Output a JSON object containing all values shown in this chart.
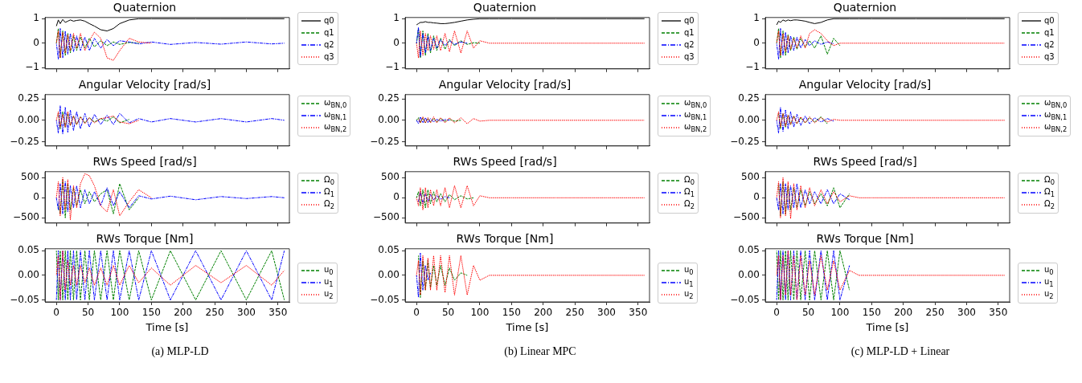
{
  "chart_data": [
    {
      "type": "line",
      "title": "Quaternion",
      "x": [
        0,
        3,
        6,
        10,
        14,
        18,
        22,
        27,
        32,
        38,
        45,
        52,
        60,
        70,
        80,
        90,
        100,
        115,
        130,
        150,
        180,
        220,
        260,
        300,
        340,
        360
      ],
      "xlim": [
        -18,
        368
      ],
      "xticks": [
        0,
        50,
        100,
        150,
        200,
        250,
        300,
        350
      ],
      "ylim": [
        -1.05,
        1.05
      ],
      "yticks": [
        {
          "value": -1,
          "label": "−1"
        },
        0,
        1
      ],
      "legend": "right",
      "tick_labels": "y",
      "series": [
        {
          "name": "q0",
          "color": "#000000",
          "line_style": "solid",
          "values": [
            0.7,
            0.95,
            0.8,
            0.97,
            0.85,
            0.9,
            0.95,
            0.9,
            0.93,
            0.95,
            0.9,
            0.8,
            0.7,
            0.55,
            0.5,
            0.6,
            0.8,
            0.95,
            1,
            1,
            1,
            1,
            1,
            1,
            1,
            1
          ]
        },
        {
          "name": "q1",
          "color": "#008000",
          "line_style": "dashed",
          "values": [
            0,
            0.6,
            -0.6,
            0.5,
            -0.5,
            0.4,
            -0.4,
            0.3,
            -0.3,
            0.25,
            -0.2,
            0.2,
            -0.15,
            0.1,
            -0.1,
            0.05,
            -0.05,
            0.03,
            0,
            null,
            null,
            null,
            null,
            null,
            null,
            null
          ]
        },
        {
          "name": "q2",
          "color": "#0000ff",
          "line_style": "dashdot",
          "values": [
            0,
            -0.65,
            0.6,
            -0.6,
            0.5,
            -0.45,
            0.4,
            -0.35,
            0.3,
            -0.3,
            0.25,
            -0.3,
            0.2,
            -0.2,
            0.15,
            -0.1,
            0.1,
            0.05,
            -0.03,
            0.05,
            -0.05,
            0.03,
            -0.04,
            0.05,
            -0.03,
            0
          ]
        },
        {
          "name": "q3",
          "color": "#ff0000",
          "line_style": "dotted",
          "values": [
            0,
            0.5,
            -0.6,
            0.45,
            -0.4,
            0.35,
            -0.3,
            0.4,
            -0.2,
            0.4,
            -0.3,
            0.1,
            0.45,
            0.2,
            -0.6,
            -0.7,
            -0.3,
            0.2,
            0.05,
            0,
            null,
            null,
            null,
            null,
            null,
            null
          ]
        }
      ]
    },
    {
      "type": "line",
      "title": "Angular Velocity [rad/s]",
      "x": [
        0,
        3,
        6,
        10,
        14,
        18,
        22,
        27,
        32,
        38,
        45,
        52,
        60,
        70,
        80,
        90,
        100,
        115,
        130,
        150,
        180,
        220,
        260,
        300,
        340,
        360
      ],
      "xlim": [
        -18,
        368
      ],
      "xticks": [
        0,
        50,
        100,
        150,
        200,
        250,
        300,
        350
      ],
      "ylim": [
        -0.3,
        0.3
      ],
      "yticks": [
        {
          "value": -0.25,
          "label": "−0.25"
        },
        {
          "value": 0,
          "label": "0.00"
        },
        0.25
      ],
      "legend": "right",
      "tick_labels": "y",
      "series": [
        {
          "name": "ω$_{BN,0}$",
          "color": "#008000",
          "line_style": "dashed",
          "values": [
            null,
            0.08,
            -0.1,
            0.1,
            -0.08,
            0.08,
            -0.06,
            0.05,
            -0.05,
            0.04,
            -0.03,
            0.03,
            -0.02,
            0.02,
            -0.01,
            0.04,
            -0.03,
            0.01,
            null,
            null,
            null,
            null,
            null,
            null,
            null,
            null
          ]
        },
        {
          "name": "ω$_{BN,1}$",
          "color": "#0000ff",
          "line_style": "dashdot",
          "values": [
            0,
            -0.15,
            0.17,
            -0.16,
            0.15,
            -0.14,
            0.12,
            -0.12,
            0.1,
            -0.1,
            0.08,
            -0.08,
            0.07,
            -0.05,
            0.06,
            -0.05,
            0.08,
            -0.03,
            0.02,
            -0.02,
            0.02,
            -0.02,
            0.02,
            -0.02,
            0.02,
            0
          ]
        },
        {
          "name": "ω$_{BN,2}$",
          "color": "#ff0000",
          "line_style": "dotted",
          "values": [
            0,
            0.1,
            -0.08,
            0.07,
            -0.08,
            0.1,
            -0.06,
            0.05,
            -0.05,
            0.04,
            -0.04,
            0.03,
            -0.03,
            0.02,
            0.03,
            0.05,
            -0.02,
            -0.04,
            0,
            null,
            null,
            null,
            null,
            null,
            null,
            null
          ]
        }
      ]
    },
    {
      "type": "line",
      "title": "RWs Speed [rad/s]",
      "x": [
        0,
        3,
        6,
        10,
        14,
        18,
        22,
        27,
        32,
        38,
        45,
        52,
        60,
        70,
        80,
        90,
        100,
        115,
        130,
        150,
        180,
        220,
        260,
        300,
        340,
        360
      ],
      "xlim": [
        -18,
        368
      ],
      "xticks": [
        0,
        50,
        100,
        150,
        200,
        250,
        300,
        350
      ],
      "ylim": [
        -630,
        650
      ],
      "yticks": [
        {
          "value": -500,
          "label": "−500"
        },
        0,
        500
      ],
      "legend": "right",
      "tick_labels": "y",
      "series": [
        {
          "name": "Ω$_{0}$",
          "color": "#008000",
          "line_style": "dashed",
          "values": [
            null,
            -150,
            -400,
            450,
            -500,
            350,
            -300,
            250,
            -200,
            200,
            -150,
            150,
            -100,
            100,
            200,
            -400,
            350,
            -300,
            0,
            null,
            null,
            null,
            null,
            null,
            null,
            null
          ]
        },
        {
          "name": "Ω$_{1}$",
          "color": "#0000ff",
          "line_style": "dashdot",
          "values": [
            0,
            -300,
            350,
            -400,
            400,
            -350,
            300,
            -250,
            300,
            -250,
            200,
            -150,
            150,
            -200,
            250,
            -200,
            150,
            -250,
            50,
            -30,
            40,
            -50,
            30,
            -20,
            30,
            0
          ]
        },
        {
          "name": "Ω$_{2}$",
          "color": "#ff0000",
          "line_style": "dotted",
          "values": [
            0,
            400,
            -450,
            500,
            -300,
            450,
            -550,
            300,
            -250,
            350,
            600,
            550,
            300,
            -200,
            -350,
            200,
            -450,
            -100,
            200,
            0,
            null,
            null,
            null,
            null,
            null,
            null
          ]
        }
      ]
    },
    {
      "type": "line",
      "title": "RWs Torque [Nm]",
      "xlabel": "Time [s]",
      "annotations": [
        "(a) MLP-LD"
      ],
      "x": [
        0,
        3,
        6,
        10,
        14,
        18,
        22,
        27,
        32,
        38,
        45,
        52,
        60,
        70,
        80,
        90,
        100,
        115,
        130,
        150,
        180,
        220,
        260,
        300,
        340,
        360
      ],
      "xlim": [
        -18,
        368
      ],
      "xticks": [
        0,
        50,
        100,
        150,
        200,
        250,
        300,
        350
      ],
      "ylim": [
        -0.054,
        0.054
      ],
      "yticks": [
        {
          "value": -0.05,
          "label": "−0.05"
        },
        {
          "value": 0,
          "label": "0.00"
        },
        0.05
      ],
      "legend": "right",
      "series": [
        {
          "name": "u$_{0}$",
          "color": "#008000",
          "line_style": "dashed",
          "values": [
            0.05,
            -0.05,
            0.05,
            -0.05,
            0.05,
            -0.05,
            0.05,
            -0.05,
            0.05,
            -0.05,
            0.05,
            -0.05,
            0.05,
            -0.05,
            0.05,
            -0.05,
            0.05,
            -0.05,
            0.05,
            -0.05,
            0.05,
            -0.05,
            0.05,
            -0.05,
            0.05,
            -0.05
          ]
        },
        {
          "name": "u$_{1}$",
          "color": "#0000ff",
          "line_style": "dashdot",
          "values": [
            -0.05,
            0.05,
            -0.05,
            0.05,
            -0.05,
            0.05,
            -0.05,
            0.05,
            -0.05,
            0.05,
            -0.05,
            0.05,
            -0.05,
            0.05,
            -0.05,
            0.05,
            -0.05,
            0.05,
            -0.05,
            0.05,
            -0.05,
            0.05,
            -0.05,
            0.05,
            -0.05,
            0.05
          ]
        },
        {
          "name": "u$_{2}$",
          "color": "#ff0000",
          "line_style": "dotted",
          "values": [
            0,
            0.04,
            -0.05,
            0.05,
            -0.03,
            0.03,
            -0.02,
            0.02,
            -0.02,
            0.02,
            -0.015,
            0.015,
            -0.02,
            0.015,
            -0.02,
            0.02,
            -0.02,
            0.02,
            -0.015,
            0.015,
            -0.02,
            0.02,
            -0.015,
            0.02,
            -0.02,
            0.01
          ]
        }
      ]
    },
    {
      "type": "line",
      "title": "Quaternion",
      "x": [
        0,
        3,
        6,
        10,
        14,
        18,
        22,
        27,
        32,
        38,
        45,
        52,
        60,
        70,
        80,
        90,
        100,
        115,
        130,
        150,
        180,
        220,
        260,
        300,
        340,
        360
      ],
      "xlim": [
        -18,
        368
      ],
      "xticks": [
        0,
        50,
        100,
        150,
        200,
        250,
        300,
        350
      ],
      "ylim": [
        -1.05,
        1.05
      ],
      "yticks": [
        {
          "value": -1,
          "label": "−1"
        },
        0,
        1
      ],
      "legend": "right",
      "tick_labels": "y",
      "series": [
        {
          "name": "q0",
          "color": "#000000",
          "line_style": "solid",
          "values": [
            0.75,
            0.8,
            0.85,
            0.85,
            0.88,
            0.85,
            0.85,
            0.83,
            0.82,
            0.8,
            0.8,
            0.82,
            0.85,
            0.9,
            0.95,
            0.98,
            1,
            1,
            1,
            1,
            1,
            1,
            1,
            1,
            1,
            1
          ]
        },
        {
          "name": "q1",
          "color": "#008000",
          "line_style": "dashed",
          "values": [
            0,
            0.6,
            -0.6,
            0.5,
            -0.5,
            0.4,
            -0.4,
            0.3,
            -0.3,
            0.2,
            -0.25,
            0.15,
            -0.1,
            0.1,
            -0.05,
            0.02,
            0,
            null,
            null,
            null,
            null,
            null,
            null,
            null,
            null,
            null
          ]
        },
        {
          "name": "q2",
          "color": "#0000ff",
          "line_style": "dashdot",
          "values": [
            0,
            0.65,
            -0.55,
            0.4,
            -0.4,
            0.3,
            -0.3,
            0.2,
            -0.2,
            0.15,
            -0.1,
            0.1,
            -0.05,
            0.05,
            0,
            null,
            null,
            null,
            null,
            null,
            null,
            null,
            null,
            null,
            null,
            null
          ]
        },
        {
          "name": "q3",
          "color": "#ff0000",
          "line_style": "dotted",
          "values": [
            0,
            -0.6,
            0.5,
            -0.5,
            0.4,
            -0.3,
            0.3,
            -0.25,
            0.3,
            -0.3,
            0.4,
            -0.35,
            0.5,
            -0.4,
            0.5,
            -0.2,
            0.1,
            0,
            0,
            0,
            0,
            0,
            0,
            0,
            0,
            0
          ]
        }
      ]
    },
    {
      "type": "line",
      "title": "Angular Velocity [rad/s]",
      "x": [
        0,
        3,
        6,
        10,
        14,
        18,
        22,
        27,
        32,
        38,
        45,
        52,
        60,
        70,
        80,
        90,
        100,
        115,
        130,
        150,
        180,
        220,
        260,
        300,
        340,
        360
      ],
      "xlim": [
        -18,
        368
      ],
      "xticks": [
        0,
        50,
        100,
        150,
        200,
        250,
        300,
        350
      ],
      "ylim": [
        -0.3,
        0.3
      ],
      "yticks": [
        {
          "value": -0.25,
          "label": "−0.25"
        },
        {
          "value": 0,
          "label": "0.00"
        },
        0.25
      ],
      "legend": "right",
      "tick_labels": "y",
      "series": [
        {
          "name": "ω$_{BN,0}$",
          "color": "#008000",
          "line_style": "dashed",
          "values": [
            0,
            0.03,
            -0.03,
            0.03,
            -0.03,
            0.02,
            -0.02,
            0.02,
            -0.02,
            0.02,
            -0.01,
            0.01,
            -0.01,
            0,
            null,
            null,
            null,
            null,
            null,
            null,
            null,
            null,
            null,
            null,
            null,
            null
          ]
        },
        {
          "name": "ω$_{BN,1}$",
          "color": "#0000ff",
          "line_style": "dashdot",
          "values": [
            0,
            -0.04,
            0.04,
            -0.03,
            0.03,
            -0.03,
            0.02,
            -0.02,
            0.01,
            -0.01,
            0.01,
            0,
            null,
            null,
            null,
            null,
            null,
            null,
            null,
            null,
            null,
            null,
            null,
            null,
            null,
            null
          ]
        },
        {
          "name": "ω$_{BN,2}$",
          "color": "#ff0000",
          "line_style": "dotted",
          "values": [
            null,
            0.02,
            -0.03,
            0.04,
            -0.03,
            0.03,
            -0.03,
            0.04,
            -0.03,
            0.03,
            -0.03,
            0.03,
            -0.03,
            0.03,
            -0.04,
            0.02,
            -0.01,
            0,
            0,
            0,
            0,
            0,
            0,
            0,
            0,
            0
          ]
        }
      ]
    },
    {
      "type": "line",
      "title": "RWs Speed [rad/s]",
      "x": [
        0,
        3,
        6,
        10,
        14,
        18,
        22,
        27,
        32,
        38,
        45,
        52,
        60,
        70,
        80,
        90,
        100,
        115,
        130,
        150,
        180,
        220,
        260,
        300,
        340,
        360
      ],
      "xlim": [
        -18,
        368
      ],
      "xticks": [
        0,
        50,
        100,
        150,
        200,
        250,
        300,
        350
      ],
      "ylim": [
        -630,
        650
      ],
      "yticks": [
        {
          "value": -500,
          "label": "−500"
        },
        0,
        500
      ],
      "legend": "right",
      "tick_labels": "y",
      "series": [
        {
          "name": "Ω$_{0}$",
          "color": "#008000",
          "line_style": "dashed",
          "values": [
            0,
            150,
            -200,
            200,
            -250,
            200,
            -150,
            150,
            -100,
            100,
            -100,
            80,
            -50,
            50,
            -30,
            0,
            null,
            null,
            null,
            null,
            null,
            null,
            null,
            null,
            null,
            null
          ]
        },
        {
          "name": "Ω$_{1}$",
          "color": "#0000ff",
          "line_style": "dashdot",
          "values": [
            null,
            -100,
            150,
            -150,
            100,
            -100,
            80,
            -50,
            50,
            -40,
            30,
            0,
            null,
            null,
            null,
            null,
            null,
            null,
            null,
            null,
            null,
            null,
            null,
            null,
            null,
            null
          ]
        },
        {
          "name": "Ω$_{2}$",
          "color": "#ff0000",
          "line_style": "dotted",
          "values": [
            0,
            -200,
            250,
            -300,
            250,
            -250,
            200,
            -200,
            200,
            -200,
            250,
            -250,
            300,
            -250,
            300,
            -200,
            50,
            0,
            0,
            0,
            0,
            0,
            0,
            0,
            0,
            0
          ]
        }
      ]
    },
    {
      "type": "line",
      "title": "RWs Torque [Nm]",
      "xlabel": "Time [s]",
      "annotations": [
        "(b) Linear MPC"
      ],
      "x": [
        0,
        3,
        6,
        10,
        14,
        18,
        22,
        27,
        32,
        38,
        45,
        52,
        60,
        70,
        80,
        90,
        100,
        115,
        130,
        150,
        180,
        220,
        260,
        300,
        340,
        360
      ],
      "xlim": [
        -18,
        368
      ],
      "xticks": [
        0,
        50,
        100,
        150,
        200,
        250,
        300,
        350
      ],
      "ylim": [
        -0.054,
        0.054
      ],
      "yticks": [
        {
          "value": -0.05,
          "label": "−0.05"
        },
        {
          "value": 0,
          "label": "0.00"
        },
        0.05
      ],
      "legend": "right",
      "series": [
        {
          "name": "u$_{0}$",
          "color": "#008000",
          "line_style": "dashed",
          "values": [
            null,
            0.04,
            -0.045,
            0.03,
            -0.03,
            0.03,
            -0.025,
            0.02,
            -0.02,
            0.02,
            -0.02,
            0.015,
            -0.01,
            0.005,
            0,
            null,
            null,
            null,
            null,
            null,
            null,
            null,
            null,
            null,
            null,
            null
          ]
        },
        {
          "name": "u$_{1}$",
          "color": "#0000ff",
          "line_style": "dashdot",
          "values": [
            0,
            -0.045,
            0.045,
            -0.03,
            0.02,
            -0.01,
            0.005,
            null,
            null,
            null,
            null,
            null,
            null,
            null,
            null,
            null,
            null,
            null,
            null,
            null,
            null,
            null,
            null,
            null,
            null,
            null
          ]
        },
        {
          "name": "u$_{2}$",
          "color": "#ff0000",
          "line_style": "dotted",
          "values": [
            0,
            0.03,
            -0.04,
            0.04,
            -0.03,
            0.035,
            -0.03,
            0.04,
            -0.03,
            0.04,
            -0.035,
            0.04,
            -0.04,
            0.04,
            -0.04,
            0.02,
            -0.01,
            0,
            0,
            0,
            0,
            0,
            0,
            0,
            0,
            0
          ]
        }
      ]
    },
    {
      "type": "line",
      "title": "Quaternion",
      "x": [
        0,
        3,
        6,
        10,
        14,
        18,
        22,
        27,
        32,
        38,
        45,
        52,
        60,
        70,
        80,
        90,
        100,
        115,
        130,
        150,
        180,
        220,
        260,
        300,
        340,
        360
      ],
      "xlim": [
        -18,
        368
      ],
      "xticks": [
        0,
        50,
        100,
        150,
        200,
        250,
        300,
        350
      ],
      "ylim": [
        -1.05,
        1.05
      ],
      "yticks": [
        {
          "value": -1,
          "label": "−1"
        },
        0,
        1
      ],
      "legend": "right",
      "tick_labels": "y",
      "series": [
        {
          "name": "q0",
          "color": "#000000",
          "line_style": "solid",
          "values": [
            0.75,
            0.9,
            0.85,
            0.95,
            0.9,
            0.95,
            0.92,
            0.95,
            0.95,
            0.93,
            0.9,
            0.85,
            0.8,
            0.85,
            0.95,
            1,
            1,
            1,
            1,
            1,
            1,
            1,
            1,
            1,
            1,
            1
          ]
        },
        {
          "name": "q1",
          "color": "#008000",
          "line_style": "dashed",
          "values": [
            0,
            0.6,
            -0.6,
            0.5,
            -0.5,
            0.35,
            -0.3,
            0.25,
            -0.25,
            0.2,
            -0.15,
            0.1,
            -0.2,
            0.3,
            -0.45,
            0.2,
            -0.1,
            null,
            null,
            null,
            null,
            null,
            null,
            null,
            null,
            null
          ]
        },
        {
          "name": "q2",
          "color": "#0000ff",
          "line_style": "dashdot",
          "values": [
            0,
            -0.65,
            0.6,
            -0.5,
            0.45,
            -0.4,
            0.3,
            -0.3,
            0.25,
            -0.2,
            0.15,
            -0.1,
            0.1,
            -0.05,
            0.05,
            -0.02,
            null,
            null,
            null,
            null,
            null,
            null,
            null,
            null,
            null,
            null
          ]
        },
        {
          "name": "q3",
          "color": "#ff0000",
          "line_style": "dotted",
          "values": [
            0,
            0.5,
            -0.5,
            0.4,
            -0.35,
            0.3,
            -0.25,
            0.2,
            -0.2,
            0.3,
            -0.2,
            0.4,
            0.55,
            0.4,
            0.1,
            -0.1,
            0,
            0,
            0,
            0,
            0,
            0,
            0,
            0,
            0,
            0
          ]
        }
      ]
    },
    {
      "type": "line",
      "title": "Angular Velocity [rad/s]",
      "x": [
        0,
        3,
        6,
        10,
        14,
        18,
        22,
        27,
        32,
        38,
        45,
        52,
        60,
        70,
        80,
        90,
        100,
        115,
        130,
        150,
        180,
        220,
        260,
        300,
        340,
        360
      ],
      "xlim": [
        -18,
        368
      ],
      "xticks": [
        0,
        50,
        100,
        150,
        200,
        250,
        300,
        350
      ],
      "ylim": [
        -0.3,
        0.3
      ],
      "yticks": [
        {
          "value": -0.25,
          "label": "−0.25"
        },
        {
          "value": 0,
          "label": "0.00"
        },
        0.25
      ],
      "legend": "right",
      "tick_labels": "y",
      "series": [
        {
          "name": "ω$_{BN,0}$",
          "color": "#008000",
          "line_style": "dashed",
          "values": [
            null,
            0.08,
            -0.1,
            0.08,
            -0.08,
            0.06,
            -0.05,
            0.05,
            -0.04,
            0.03,
            -0.03,
            0.03,
            -0.02,
            0.04,
            -0.04,
            null,
            null,
            null,
            null,
            null,
            null,
            null,
            null,
            null,
            null,
            null
          ]
        },
        {
          "name": "ω$_{BN,1}$",
          "color": "#0000ff",
          "line_style": "dashdot",
          "values": [
            0,
            -0.15,
            0.15,
            -0.13,
            0.12,
            -0.1,
            0.1,
            -0.08,
            0.07,
            -0.06,
            0.05,
            -0.04,
            0.03,
            -0.02,
            0.02,
            -0.01,
            null,
            null,
            null,
            null,
            null,
            null,
            null,
            null,
            null,
            null
          ]
        },
        {
          "name": "ω$_{BN,2}$",
          "color": "#ff0000",
          "line_style": "dotted",
          "values": [
            0,
            0.1,
            -0.08,
            0.08,
            -0.07,
            0.06,
            -0.05,
            0.05,
            -0.04,
            0.04,
            -0.03,
            0.04,
            -0.03,
            0.03,
            -0.02,
            0.01,
            0,
            0,
            0,
            0,
            0,
            0,
            0,
            0,
            0,
            0
          ]
        }
      ]
    },
    {
      "type": "line",
      "title": "RWs Speed [rad/s]",
      "x": [
        0,
        3,
        6,
        10,
        14,
        18,
        22,
        27,
        32,
        38,
        45,
        52,
        60,
        70,
        80,
        90,
        100,
        115,
        130,
        150,
        180,
        220,
        260,
        300,
        340,
        360
      ],
      "xlim": [
        -18,
        368
      ],
      "xticks": [
        0,
        50,
        100,
        150,
        200,
        250,
        300,
        350
      ],
      "ylim": [
        -630,
        650
      ],
      "yticks": [
        {
          "value": -500,
          "label": "−500"
        },
        0,
        500
      ],
      "legend": "right",
      "tick_labels": "y",
      "series": [
        {
          "name": "Ω$_{0}$",
          "color": "#008000",
          "line_style": "dashed",
          "values": [
            null,
            350,
            -450,
            400,
            -400,
            300,
            -300,
            250,
            -250,
            200,
            -200,
            150,
            -150,
            100,
            -200,
            250,
            -250,
            100,
            null,
            null,
            null,
            null,
            null,
            null,
            null,
            null
          ]
        },
        {
          "name": "Ω$_{1}$",
          "color": "#0000ff",
          "line_style": "dashdot",
          "values": [
            0,
            -300,
            350,
            -400,
            350,
            -300,
            300,
            -250,
            350,
            -250,
            200,
            -150,
            150,
            -150,
            200,
            -150,
            100,
            -50,
            null,
            null,
            null,
            null,
            null,
            null,
            null,
            null
          ]
        },
        {
          "name": "Ω$_{2}$",
          "color": "#ff0000",
          "line_style": "dotted",
          "values": [
            0,
            400,
            -500,
            500,
            -450,
            400,
            -520,
            350,
            -300,
            300,
            -250,
            250,
            -200,
            200,
            -150,
            150,
            -100,
            50,
            0,
            0,
            0,
            0,
            0,
            0,
            0,
            0
          ]
        }
      ]
    },
    {
      "type": "line",
      "title": "RWs Torque [Nm]",
      "xlabel": "Time [s]",
      "annotations": [
        "(c) MLP-LD + Linear"
      ],
      "x": [
        0,
        3,
        6,
        10,
        14,
        18,
        22,
        27,
        32,
        38,
        45,
        52,
        60,
        70,
        80,
        90,
        100,
        115,
        130,
        150,
        180,
        220,
        260,
        300,
        340,
        360
      ],
      "xlim": [
        -18,
        368
      ],
      "xticks": [
        0,
        50,
        100,
        150,
        200,
        250,
        300,
        350
      ],
      "ylim": [
        -0.054,
        0.054
      ],
      "yticks": [
        {
          "value": -0.05,
          "label": "−0.05"
        },
        {
          "value": 0,
          "label": "0.00"
        },
        0.05
      ],
      "legend": "right",
      "series": [
        {
          "name": "u$_{0}$",
          "color": "#008000",
          "line_style": "dashed",
          "values": [
            0.05,
            -0.05,
            0.05,
            -0.05,
            0.05,
            -0.05,
            0.05,
            -0.05,
            0.05,
            -0.05,
            0.05,
            -0.05,
            0.05,
            -0.05,
            0.05,
            -0.05,
            0.05,
            -0.03,
            null,
            null,
            null,
            null,
            null,
            null,
            null,
            null
          ]
        },
        {
          "name": "u$_{1}$",
          "color": "#0000ff",
          "line_style": "dashdot",
          "values": [
            -0.05,
            0.05,
            -0.05,
            0.05,
            -0.05,
            0.05,
            -0.05,
            0.05,
            -0.05,
            0.05,
            -0.05,
            0.05,
            -0.05,
            0.05,
            -0.05,
            0.05,
            -0.05,
            0.02,
            null,
            null,
            null,
            null,
            null,
            null,
            null,
            null
          ]
        },
        {
          "name": "u$_{2}$",
          "color": "#ff0000",
          "line_style": "dotted",
          "values": [
            0,
            0.04,
            -0.05,
            0.04,
            -0.04,
            0.05,
            -0.04,
            0.04,
            -0.05,
            0.04,
            -0.04,
            0.03,
            -0.04,
            0.04,
            -0.03,
            0.03,
            -0.03,
            0.01,
            0,
            0,
            0,
            0,
            0,
            0,
            0,
            0
          ]
        }
      ]
    }
  ]
}
